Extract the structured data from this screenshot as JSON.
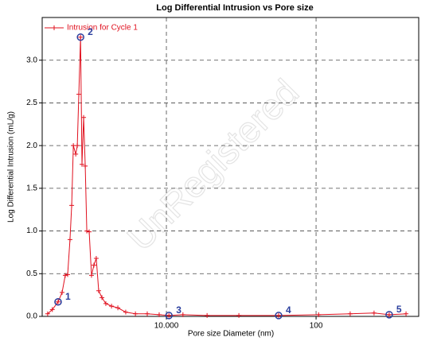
{
  "chart_data": {
    "type": "line",
    "title": "Log Differential Intrusion vs Pore size",
    "xlabel": "Pore size Diameter (nm)",
    "ylabel": "Log Differential Intrusion (mL/g)",
    "watermark": "UnRegistered",
    "log_x": true,
    "grid": true,
    "legend": "top-left",
    "x": [
      1.61,
      1.73,
      1.89,
      2.01,
      2.11,
      2.19,
      2.27,
      2.33,
      2.39,
      2.48,
      2.54,
      2.6,
      2.67,
      2.73,
      2.8,
      2.87,
      2.94,
      3.05,
      3.16,
      3.28,
      3.4,
      3.53,
      3.71,
      3.94,
      4.3,
      4.74,
      5.35,
      6.21,
      7.45,
      8.95,
      10.4,
      12.9,
      18.7,
      30.5,
      56.2,
      104,
      169,
      244,
      308,
      399
    ],
    "series": [
      {
        "name": "Intrusion for Cycle 1",
        "color": "#e0101e",
        "values": [
          0.03,
          0.08,
          0.17,
          0.28,
          0.48,
          0.49,
          0.9,
          1.3,
          2.0,
          1.9,
          2.0,
          2.6,
          3.27,
          1.78,
          2.33,
          1.76,
          1.0,
          0.99,
          0.48,
          0.6,
          0.68,
          0.3,
          0.22,
          0.15,
          0.12,
          0.1,
          0.05,
          0.03,
          0.03,
          0.02,
          0.01,
          0.02,
          0.01,
          0.01,
          0.01,
          0.02,
          0.03,
          0.04,
          0.02,
          0.03
        ]
      }
    ],
    "annotations": [
      {
        "label": "1",
        "x": 1.89,
        "y": 0.17
      },
      {
        "label": "2",
        "x": 2.67,
        "y": 3.27
      },
      {
        "label": "3",
        "x": 10.4,
        "y": 0.01
      },
      {
        "label": "4",
        "x": 56.2,
        "y": 0.01
      },
      {
        "label": "5",
        "x": 308,
        "y": 0.02
      }
    ],
    "xlim": [
      1.48,
      485
    ],
    "xticks": [
      {
        "value": 10,
        "label": "10.000"
      },
      100
    ],
    "ylim": [
      0,
      3.5
    ],
    "yticks": [
      {
        "value": 0,
        "label": "0.0"
      },
      0.5,
      {
        "value": 1,
        "label": "1.0"
      },
      1.5,
      {
        "value": 2,
        "label": "2.0"
      },
      2.5,
      {
        "value": 3,
        "label": "3.0"
      }
    ]
  }
}
